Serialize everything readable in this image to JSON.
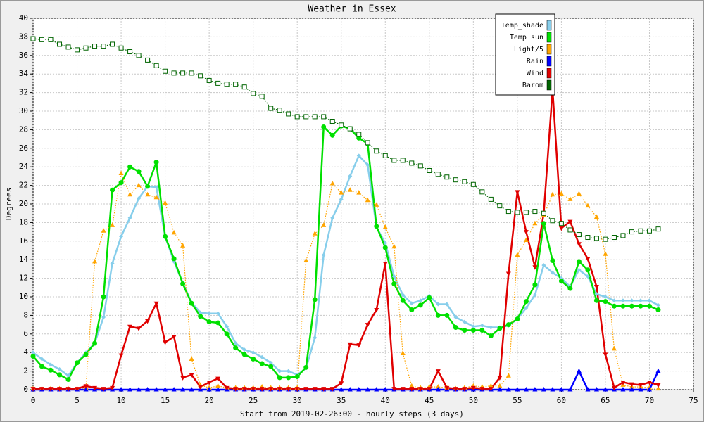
{
  "chart_data": {
    "type": "line",
    "title": "Weather in Essex",
    "y_label": "Degrees",
    "x_label": "Start from 2019-02-26:00 - hourly steps (3 days)",
    "x": [
      0,
      1,
      2,
      3,
      4,
      5,
      6,
      7,
      8,
      9,
      10,
      11,
      12,
      13,
      14,
      15,
      16,
      17,
      18,
      19,
      20,
      21,
      22,
      23,
      24,
      25,
      26,
      27,
      28,
      29,
      30,
      31,
      32,
      33,
      34,
      35,
      36,
      37,
      38,
      39,
      40,
      41,
      42,
      43,
      44,
      45,
      46,
      47,
      48,
      49,
      50,
      51,
      52,
      53,
      54,
      55,
      56,
      57,
      58,
      59,
      60,
      61,
      62,
      63,
      64,
      65,
      66,
      67,
      68,
      69,
      70,
      71
    ],
    "xlim": [
      0,
      75
    ],
    "xticks": [
      0,
      5,
      10,
      15,
      20,
      25,
      30,
      35,
      40,
      45,
      50,
      55,
      60,
      65,
      70,
      75
    ],
    "ylim": [
      0,
      40
    ],
    "yticks": [
      0,
      2,
      4,
      6,
      8,
      10,
      12,
      14,
      16,
      18,
      20,
      22,
      24,
      26,
      28,
      30,
      32,
      34,
      36,
      38,
      40
    ],
    "grid": true,
    "legend": "top-right",
    "series": [
      {
        "name": "Temp_shade",
        "color": "#87ceeb",
        "marker": "diamond",
        "values": [
          4.0,
          3.3,
          2.7,
          2.2,
          1.5,
          2.9,
          4.0,
          5.0,
          7.8,
          13.6,
          16.5,
          18.5,
          20.6,
          21.9,
          21.8,
          16.5,
          13.8,
          11.5,
          9.4,
          8.3,
          8.2,
          8.2,
          6.8,
          5.0,
          4.3,
          4.0,
          3.5,
          2.9,
          2.0,
          2.0,
          1.6,
          2.3,
          5.6,
          14.5,
          18.5,
          20.5,
          23.0,
          25.2,
          24.2,
          17.5,
          15.8,
          12.2,
          10.2,
          9.3,
          9.6,
          10.1,
          9.2,
          9.2,
          7.8,
          7.3,
          6.8,
          6.9,
          6.7,
          6.7,
          6.9,
          7.6,
          8.8,
          10.2,
          13.4,
          12.6,
          12.0,
          11.1,
          12.9,
          12.2,
          10.3,
          10.0,
          9.6,
          9.6,
          9.6,
          9.6,
          9.6,
          9.1
        ]
      },
      {
        "name": "Temp_sun",
        "color": "#00e000",
        "marker": "circle",
        "values": [
          3.6,
          2.5,
          2.1,
          1.6,
          1.1,
          2.9,
          3.8,
          5.0,
          10.0,
          21.5,
          22.3,
          24.0,
          23.5,
          21.9,
          24.5,
          16.5,
          14.1,
          11.4,
          9.3,
          7.9,
          7.3,
          7.2,
          6.0,
          4.5,
          3.8,
          3.3,
          2.8,
          2.5,
          1.3,
          1.3,
          1.4,
          2.4,
          9.7,
          28.3,
          27.4,
          28.4,
          28.1,
          27.1,
          26.5,
          17.6,
          15.3,
          11.4,
          9.6,
          8.6,
          9.1,
          9.9,
          8.0,
          8.0,
          6.7,
          6.4,
          6.4,
          6.4,
          5.8,
          6.6,
          7.0,
          7.6,
          9.5,
          11.3,
          17.9,
          13.9,
          11.7,
          10.9,
          13.8,
          12.9,
          9.6,
          9.5,
          9.0,
          9.0,
          9.0,
          9.0,
          9.0,
          8.6
        ]
      },
      {
        "name": "Light/5",
        "color": "#ffa500",
        "marker": "triangle-up",
        "dotted": true,
        "values": [
          0.1,
          0.1,
          0.1,
          0.1,
          0.1,
          0.1,
          0.2,
          13.8,
          17.1,
          17.7,
          23.3,
          21.0,
          22.0,
          21.0,
          20.7,
          20.1,
          16.9,
          15.5,
          3.3,
          0.5,
          0.2,
          0.4,
          0.2,
          0.2,
          0.2,
          0.2,
          0.3,
          0.2,
          0.2,
          0.2,
          0.2,
          13.9,
          16.8,
          17.7,
          22.2,
          21.2,
          21.5,
          21.2,
          20.4,
          19.9,
          17.5,
          15.4,
          3.9,
          0.4,
          0.2,
          0.3,
          0.3,
          0.2,
          0.1,
          0.2,
          0.4,
          0.3,
          0.4,
          0.4,
          1.5,
          14.5,
          16.1,
          17.9,
          18.8,
          21.0,
          21.1,
          20.5,
          21.1,
          19.8,
          18.6,
          14.6,
          4.4,
          0.5,
          0.3,
          0.3,
          0.2,
          0.1
        ]
      },
      {
        "name": "Rain",
        "color": "#0000ff",
        "marker": "triangle-up",
        "values": [
          0,
          0,
          0,
          0,
          0,
          0,
          0,
          0,
          0,
          0,
          0,
          0,
          0,
          0,
          0,
          0,
          0,
          0,
          0,
          0,
          0,
          0,
          0,
          0,
          0,
          0,
          0,
          0,
          0,
          0,
          0,
          0,
          0,
          0,
          0,
          0,
          0,
          0,
          0,
          0,
          0,
          0,
          0,
          0,
          0,
          0,
          0,
          0,
          0,
          0,
          0,
          0,
          0,
          0,
          0,
          0,
          0,
          0,
          0,
          0,
          0,
          0,
          2.0,
          0,
          0,
          0,
          0,
          0,
          0,
          0,
          0,
          2.0
        ]
      },
      {
        "name": "Wind",
        "color": "#e00000",
        "marker": "triangle-down",
        "values": [
          0.1,
          0.1,
          0.1,
          0.1,
          0.1,
          0.1,
          0.4,
          0.2,
          0.1,
          0.2,
          3.7,
          6.8,
          6.6,
          7.4,
          9.3,
          5.1,
          5.7,
          1.3,
          1.6,
          0.3,
          0.8,
          1.2,
          0.2,
          0.1,
          0.1,
          0.1,
          0.1,
          0.1,
          0.1,
          0.1,
          0.1,
          0.1,
          0.1,
          0.1,
          0.1,
          0.7,
          4.9,
          4.8,
          7.0,
          8.6,
          13.6,
          0.1,
          0.1,
          0.1,
          0.1,
          0.1,
          2.0,
          0.2,
          0.1,
          0.1,
          0.2,
          0.1,
          0.1,
          1.3,
          12.5,
          21.3,
          17.0,
          13.2,
          19.0,
          32.3,
          17.4,
          18.1,
          15.7,
          14.1,
          11.1,
          3.8,
          0.2,
          0.8,
          0.6,
          0.5,
          0.8,
          0.5
        ]
      },
      {
        "name": "Barom",
        "color": "#006400",
        "marker": "square",
        "dotted": true,
        "values": [
          37.8,
          37.7,
          37.7,
          37.2,
          36.9,
          36.6,
          36.8,
          37.0,
          37.0,
          37.2,
          36.8,
          36.4,
          36.0,
          35.5,
          34.9,
          34.3,
          34.1,
          34.1,
          34.1,
          33.8,
          33.3,
          33.0,
          32.9,
          32.9,
          32.6,
          31.9,
          31.6,
          30.3,
          30.1,
          29.7,
          29.4,
          29.4,
          29.4,
          29.4,
          28.9,
          28.5,
          28.1,
          27.5,
          26.6,
          25.7,
          25.2,
          24.7,
          24.7,
          24.4,
          24.1,
          23.6,
          23.2,
          22.9,
          22.6,
          22.4,
          22.1,
          21.3,
          20.5,
          19.8,
          19.2,
          19.1,
          19.1,
          19.2,
          19.0,
          18.2,
          17.9,
          17.2,
          16.7,
          16.4,
          16.3,
          16.2,
          16.4,
          16.6,
          17.0,
          17.1,
          17.1,
          17.3
        ]
      }
    ]
  }
}
